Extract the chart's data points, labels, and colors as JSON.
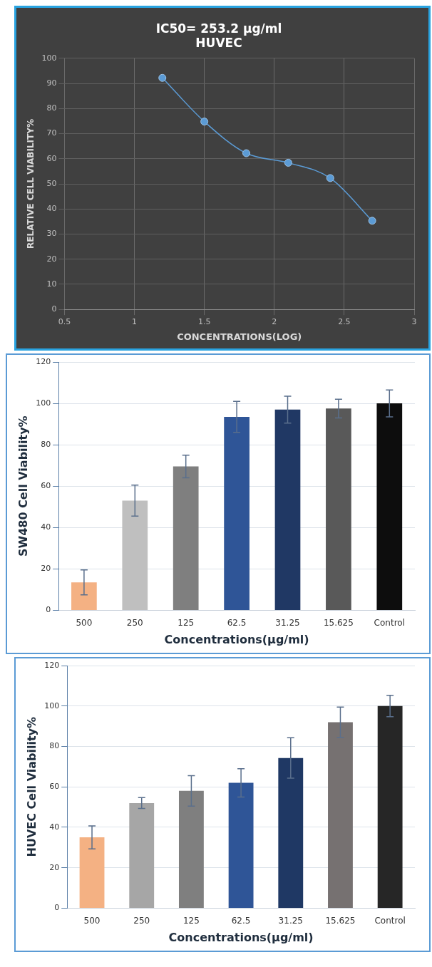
{
  "chart_data": [
    {
      "type": "line",
      "title": [
        "IC50= 253.2 µg/ml",
        "HUVEC"
      ],
      "xlabel": "CONCENTRATIONS(LOG)",
      "ylabel": "RELATIVE CELL VIABILITY%",
      "x": [
        1.2,
        1.5,
        1.8,
        2.1,
        2.4,
        2.7
      ],
      "series": [
        {
          "color": "#5b9bd5",
          "values": [
            92.2,
            74.8,
            62.2,
            58.4,
            52.3,
            35.3
          ]
        }
      ],
      "xlim": [
        0.5,
        3
      ],
      "xticks": [
        0.5,
        1,
        1.5,
        2,
        2.5,
        3
      ],
      "ylim": [
        0,
        100
      ],
      "yticks": [
        0,
        10,
        20,
        30,
        40,
        50,
        60,
        70,
        80,
        90,
        100
      ],
      "grid": true,
      "marker": "circle",
      "line_style": "solid"
    },
    {
      "type": "bar",
      "xlabel": "Concentrations(µg/ml)",
      "ylabel": "SW480 Cell Viability%",
      "categories": [
        "500",
        "250",
        "125",
        "62.5",
        "31.25",
        "15.625",
        "Control"
      ],
      "values": [
        13.5,
        53,
        69.5,
        93.5,
        97,
        97.5,
        100
      ],
      "errors": [
        6,
        7.5,
        5.5,
        7.5,
        6.5,
        4.5,
        6.5
      ],
      "colors": [
        "#f4b183",
        "#bfbfbf",
        "#7f7f7f",
        "#2f5597",
        "#203864",
        "#595959",
        "#0d0d0d"
      ],
      "ylim": [
        0,
        120
      ],
      "yticks": [
        0,
        20,
        40,
        60,
        80,
        100,
        120
      ],
      "grid": "y"
    },
    {
      "type": "bar",
      "xlabel": "Concentrations(µg/ml)",
      "ylabel": "HUVEC Cell Viability%",
      "categories": [
        "500",
        "250",
        "125",
        "62.5",
        "31.25",
        "15.625",
        "Control"
      ],
      "values": [
        35,
        52,
        58,
        62,
        74.3,
        92,
        100
      ],
      "errors": [
        5.7,
        2.7,
        7.5,
        7,
        10,
        7.5,
        5.3
      ],
      "colors": [
        "#f4b183",
        "#a6a6a6",
        "#7f7f7f",
        "#2f5597",
        "#1f3864",
        "#767171",
        "#262626"
      ],
      "ylim": [
        0,
        120
      ],
      "yticks": [
        0,
        20,
        40,
        60,
        80,
        100,
        120
      ],
      "grid": "y"
    }
  ]
}
